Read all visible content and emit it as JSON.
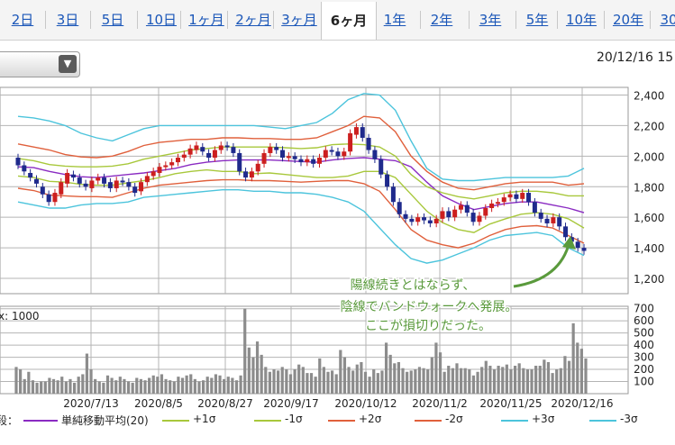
{
  "tabs": [
    {
      "label": "2日",
      "active": false
    },
    {
      "label": "3日",
      "active": false
    },
    {
      "label": "5日",
      "active": false
    },
    {
      "label": "10日",
      "active": false
    },
    {
      "label": "1ヶ月",
      "active": false
    },
    {
      "label": "2ヶ月",
      "active": false
    },
    {
      "label": "3ヶ月",
      "active": false
    },
    {
      "label": "6ヶ月",
      "active": true
    },
    {
      "label": "1年",
      "active": false
    },
    {
      "label": "2年",
      "active": false
    },
    {
      "label": "3年",
      "active": false
    },
    {
      "label": "5年",
      "active": false
    },
    {
      "label": "10年",
      "active": false
    },
    {
      "label": "20年",
      "active": false
    },
    {
      "label": "30",
      "active": false
    }
  ],
  "timestamp": "20/12/16 15",
  "colors": {
    "candle_up": "#cc1f1f",
    "candle_down": "#1f2a8c",
    "ma": "#8a2bc2",
    "s1": "#a8c83c",
    "s2": "#e0603c",
    "s3": "#4cc4dc",
    "volume": "#8c8c8c",
    "grid": "#b4b4b4",
    "annotation": "#5a9a3c"
  },
  "chart_data": [
    {
      "type": "line",
      "title": "",
      "x_ticks": [
        "2020/7/13",
        "2020/8/5",
        "2020/8/27",
        "2020/9/17",
        "2020/10/12",
        "2020/11/2",
        "2020/11/25",
        "2020/12/16"
      ],
      "y_ticks": [
        1200,
        1400,
        1600,
        1800,
        2000,
        2200,
        2400
      ],
      "ylim": [
        1100,
        2450
      ],
      "series": [
        {
          "name": "単純移動平均(20)",
          "values": [
            1930,
            1925,
            1900,
            1880,
            1865,
            1860,
            1870,
            1880,
            1890,
            1905,
            1920,
            1945,
            1960,
            1970,
            1975,
            1975,
            1975,
            1970,
            1965,
            1960,
            1975,
            1985,
            1990,
            1980,
            1970,
            1930,
            1830,
            1740,
            1690,
            1650,
            1670,
            1690,
            1700,
            1700,
            1680,
            1660,
            1630
          ]
        },
        {
          "name": "+1σ",
          "values": [
            1985,
            1970,
            1945,
            1935,
            1930,
            1930,
            1935,
            1950,
            1980,
            2000,
            2020,
            2040,
            2050,
            2060,
            2060,
            2060,
            2060,
            2055,
            2050,
            2055,
            2075,
            2080,
            2075,
            2060,
            2000,
            1880,
            1800,
            1760,
            1735,
            1720,
            1740,
            1760,
            1770,
            1770,
            1760,
            1740,
            1740
          ]
        },
        {
          "name": "-1σ",
          "values": [
            1870,
            1860,
            1835,
            1830,
            1815,
            1810,
            1810,
            1825,
            1840,
            1860,
            1885,
            1900,
            1910,
            1900,
            1900,
            1885,
            1890,
            1880,
            1870,
            1860,
            1860,
            1870,
            1900,
            1900,
            1860,
            1750,
            1640,
            1565,
            1520,
            1500,
            1555,
            1590,
            1620,
            1630,
            1620,
            1590,
            1530
          ]
        },
        {
          "name": "+2σ",
          "values": [
            2080,
            2060,
            2040,
            2010,
            1995,
            1990,
            2000,
            2030,
            2070,
            2090,
            2100,
            2110,
            2110,
            2120,
            2120,
            2115,
            2115,
            2110,
            2110,
            2120,
            2160,
            2200,
            2260,
            2250,
            2160,
            2000,
            1900,
            1830,
            1790,
            1780,
            1800,
            1820,
            1830,
            1830,
            1830,
            1810,
            1820
          ]
        },
        {
          "name": "-2σ",
          "values": [
            1790,
            1775,
            1745,
            1740,
            1735,
            1735,
            1730,
            1760,
            1790,
            1810,
            1820,
            1830,
            1840,
            1845,
            1845,
            1840,
            1840,
            1835,
            1830,
            1835,
            1840,
            1840,
            1820,
            1770,
            1650,
            1520,
            1450,
            1420,
            1400,
            1430,
            1480,
            1520,
            1540,
            1545,
            1530,
            1480,
            1430
          ]
        },
        {
          "name": "+3σ",
          "values": [
            2260,
            2250,
            2230,
            2200,
            2150,
            2120,
            2100,
            2140,
            2180,
            2200,
            2200,
            2200,
            2200,
            2200,
            2200,
            2200,
            2190,
            2180,
            2200,
            2220,
            2280,
            2370,
            2410,
            2400,
            2300,
            2100,
            1920,
            1850,
            1840,
            1840,
            1850,
            1860,
            1860,
            1860,
            1860,
            1870,
            1920
          ]
        },
        {
          "name": "-3σ",
          "values": [
            1700,
            1680,
            1660,
            1660,
            1680,
            1690,
            1690,
            1700,
            1730,
            1740,
            1750,
            1760,
            1770,
            1780,
            1780,
            1770,
            1770,
            1760,
            1760,
            1750,
            1730,
            1700,
            1640,
            1530,
            1420,
            1330,
            1300,
            1320,
            1360,
            1400,
            1450,
            1480,
            1490,
            1500,
            1480,
            1400,
            1350
          ]
        }
      ],
      "candles": [
        [
          1990,
          1940
        ],
        [
          1940,
          1900
        ],
        [
          1890,
          1860
        ],
        [
          1850,
          1820
        ],
        [
          1800,
          1750
        ],
        [
          1750,
          1700
        ],
        [
          1700,
          1760
        ],
        [
          1750,
          1830
        ],
        [
          1820,
          1890
        ],
        [
          1880,
          1860
        ],
        [
          1860,
          1820
        ],
        [
          1820,
          1800
        ],
        [
          1790,
          1840
        ],
        [
          1840,
          1860
        ],
        [
          1860,
          1820
        ],
        [
          1830,
          1790
        ],
        [
          1790,
          1840
        ],
        [
          1840,
          1830
        ],
        [
          1830,
          1800
        ],
        [
          1800,
          1760
        ],
        [
          1770,
          1830
        ],
        [
          1830,
          1870
        ],
        [
          1870,
          1900
        ],
        [
          1890,
          1930
        ],
        [
          1930,
          1940
        ],
        [
          1940,
          1960
        ],
        [
          1960,
          1990
        ],
        [
          1990,
          2010
        ],
        [
          2010,
          2050
        ],
        [
          2040,
          2070
        ],
        [
          2060,
          2030
        ],
        [
          2020,
          1990
        ],
        [
          1990,
          2040
        ],
        [
          2040,
          2070
        ],
        [
          2070,
          2060
        ],
        [
          2060,
          2020
        ],
        [
          2020,
          1900
        ],
        [
          1900,
          1860
        ],
        [
          1860,
          1900
        ],
        [
          1900,
          1950
        ],
        [
          1950,
          2020
        ],
        [
          2020,
          2060
        ],
        [
          2060,
          2040
        ],
        [
          2040,
          1990
        ],
        [
          1990,
          2000
        ],
        [
          2000,
          1980
        ],
        [
          1980,
          1960
        ],
        [
          1960,
          1980
        ],
        [
          1980,
          1950
        ],
        [
          1950,
          1990
        ],
        [
          1990,
          2040
        ],
        [
          2040,
          2030
        ],
        [
          2030,
          2000
        ],
        [
          2000,
          2030
        ],
        [
          2030,
          2150
        ],
        [
          2140,
          2190
        ],
        [
          2190,
          2120
        ],
        [
          2120,
          2040
        ],
        [
          2040,
          1980
        ],
        [
          1980,
          1880
        ],
        [
          1880,
          1800
        ],
        [
          1800,
          1700
        ],
        [
          1700,
          1620
        ],
        [
          1620,
          1590
        ],
        [
          1590,
          1570
        ],
        [
          1570,
          1600
        ],
        [
          1600,
          1580
        ],
        [
          1580,
          1560
        ],
        [
          1560,
          1590
        ],
        [
          1590,
          1640
        ],
        [
          1640,
          1600
        ],
        [
          1600,
          1650
        ],
        [
          1650,
          1680
        ],
        [
          1680,
          1630
        ],
        [
          1630,
          1570
        ],
        [
          1570,
          1610
        ],
        [
          1610,
          1660
        ],
        [
          1660,
          1690
        ],
        [
          1690,
          1700
        ],
        [
          1700,
          1730
        ],
        [
          1730,
          1750
        ],
        [
          1750,
          1720
        ],
        [
          1720,
          1760
        ],
        [
          1760,
          1700
        ],
        [
          1700,
          1630
        ],
        [
          1630,
          1590
        ],
        [
          1590,
          1560
        ],
        [
          1560,
          1600
        ],
        [
          1600,
          1540
        ],
        [
          1540,
          1470
        ],
        [
          1470,
          1440
        ],
        [
          1440,
          1400
        ],
        [
          1400,
          1380
        ]
      ]
    },
    {
      "type": "bar",
      "title": "",
      "ylabel": "x: 1000",
      "y_ticks": [
        100,
        200,
        300,
        400,
        500,
        600,
        700
      ],
      "ylim": [
        0,
        720
      ],
      "values": [
        220,
        200,
        120,
        180,
        110,
        90,
        100,
        100,
        130,
        120,
        110,
        140,
        100,
        120,
        90,
        140,
        160,
        330,
        200,
        120,
        100,
        90,
        150,
        130,
        110,
        140,
        120,
        100,
        90,
        130,
        120,
        110,
        130,
        150,
        140,
        160,
        120,
        110,
        100,
        140,
        130,
        150,
        160,
        120,
        100,
        110,
        140,
        130,
        160,
        150,
        120,
        140,
        130,
        110,
        150,
        700,
        380,
        300,
        430,
        320,
        220,
        180,
        200,
        190,
        220,
        200,
        160,
        200,
        240,
        220,
        170,
        170,
        140,
        290,
        220,
        180,
        190,
        160,
        360,
        300,
        220,
        190,
        240,
        260,
        180,
        140,
        200,
        170,
        190,
        420,
        320,
        250,
        260,
        210,
        180,
        190,
        200,
        220,
        210,
        200,
        300,
        420,
        340,
        180,
        230,
        210,
        250,
        210,
        210,
        200,
        150,
        180,
        220,
        270,
        230,
        200,
        230,
        220,
        240,
        200,
        230,
        250,
        210,
        200,
        200,
        230,
        230,
        280,
        260,
        170,
        200,
        210,
        310,
        270,
        580,
        420,
        370,
        290
      ]
    }
  ],
  "annotation": [
    "陽線続きとはならず、",
    "陰線でバンドウォークへ発展。",
    "ここが損切りだった。"
  ],
  "legend": {
    "prefix": "段：",
    "items": [
      "単純移動平均(20)",
      "+1σ",
      "-1σ",
      "+2σ",
      "-2σ",
      "+3σ",
      "-3σ"
    ]
  }
}
